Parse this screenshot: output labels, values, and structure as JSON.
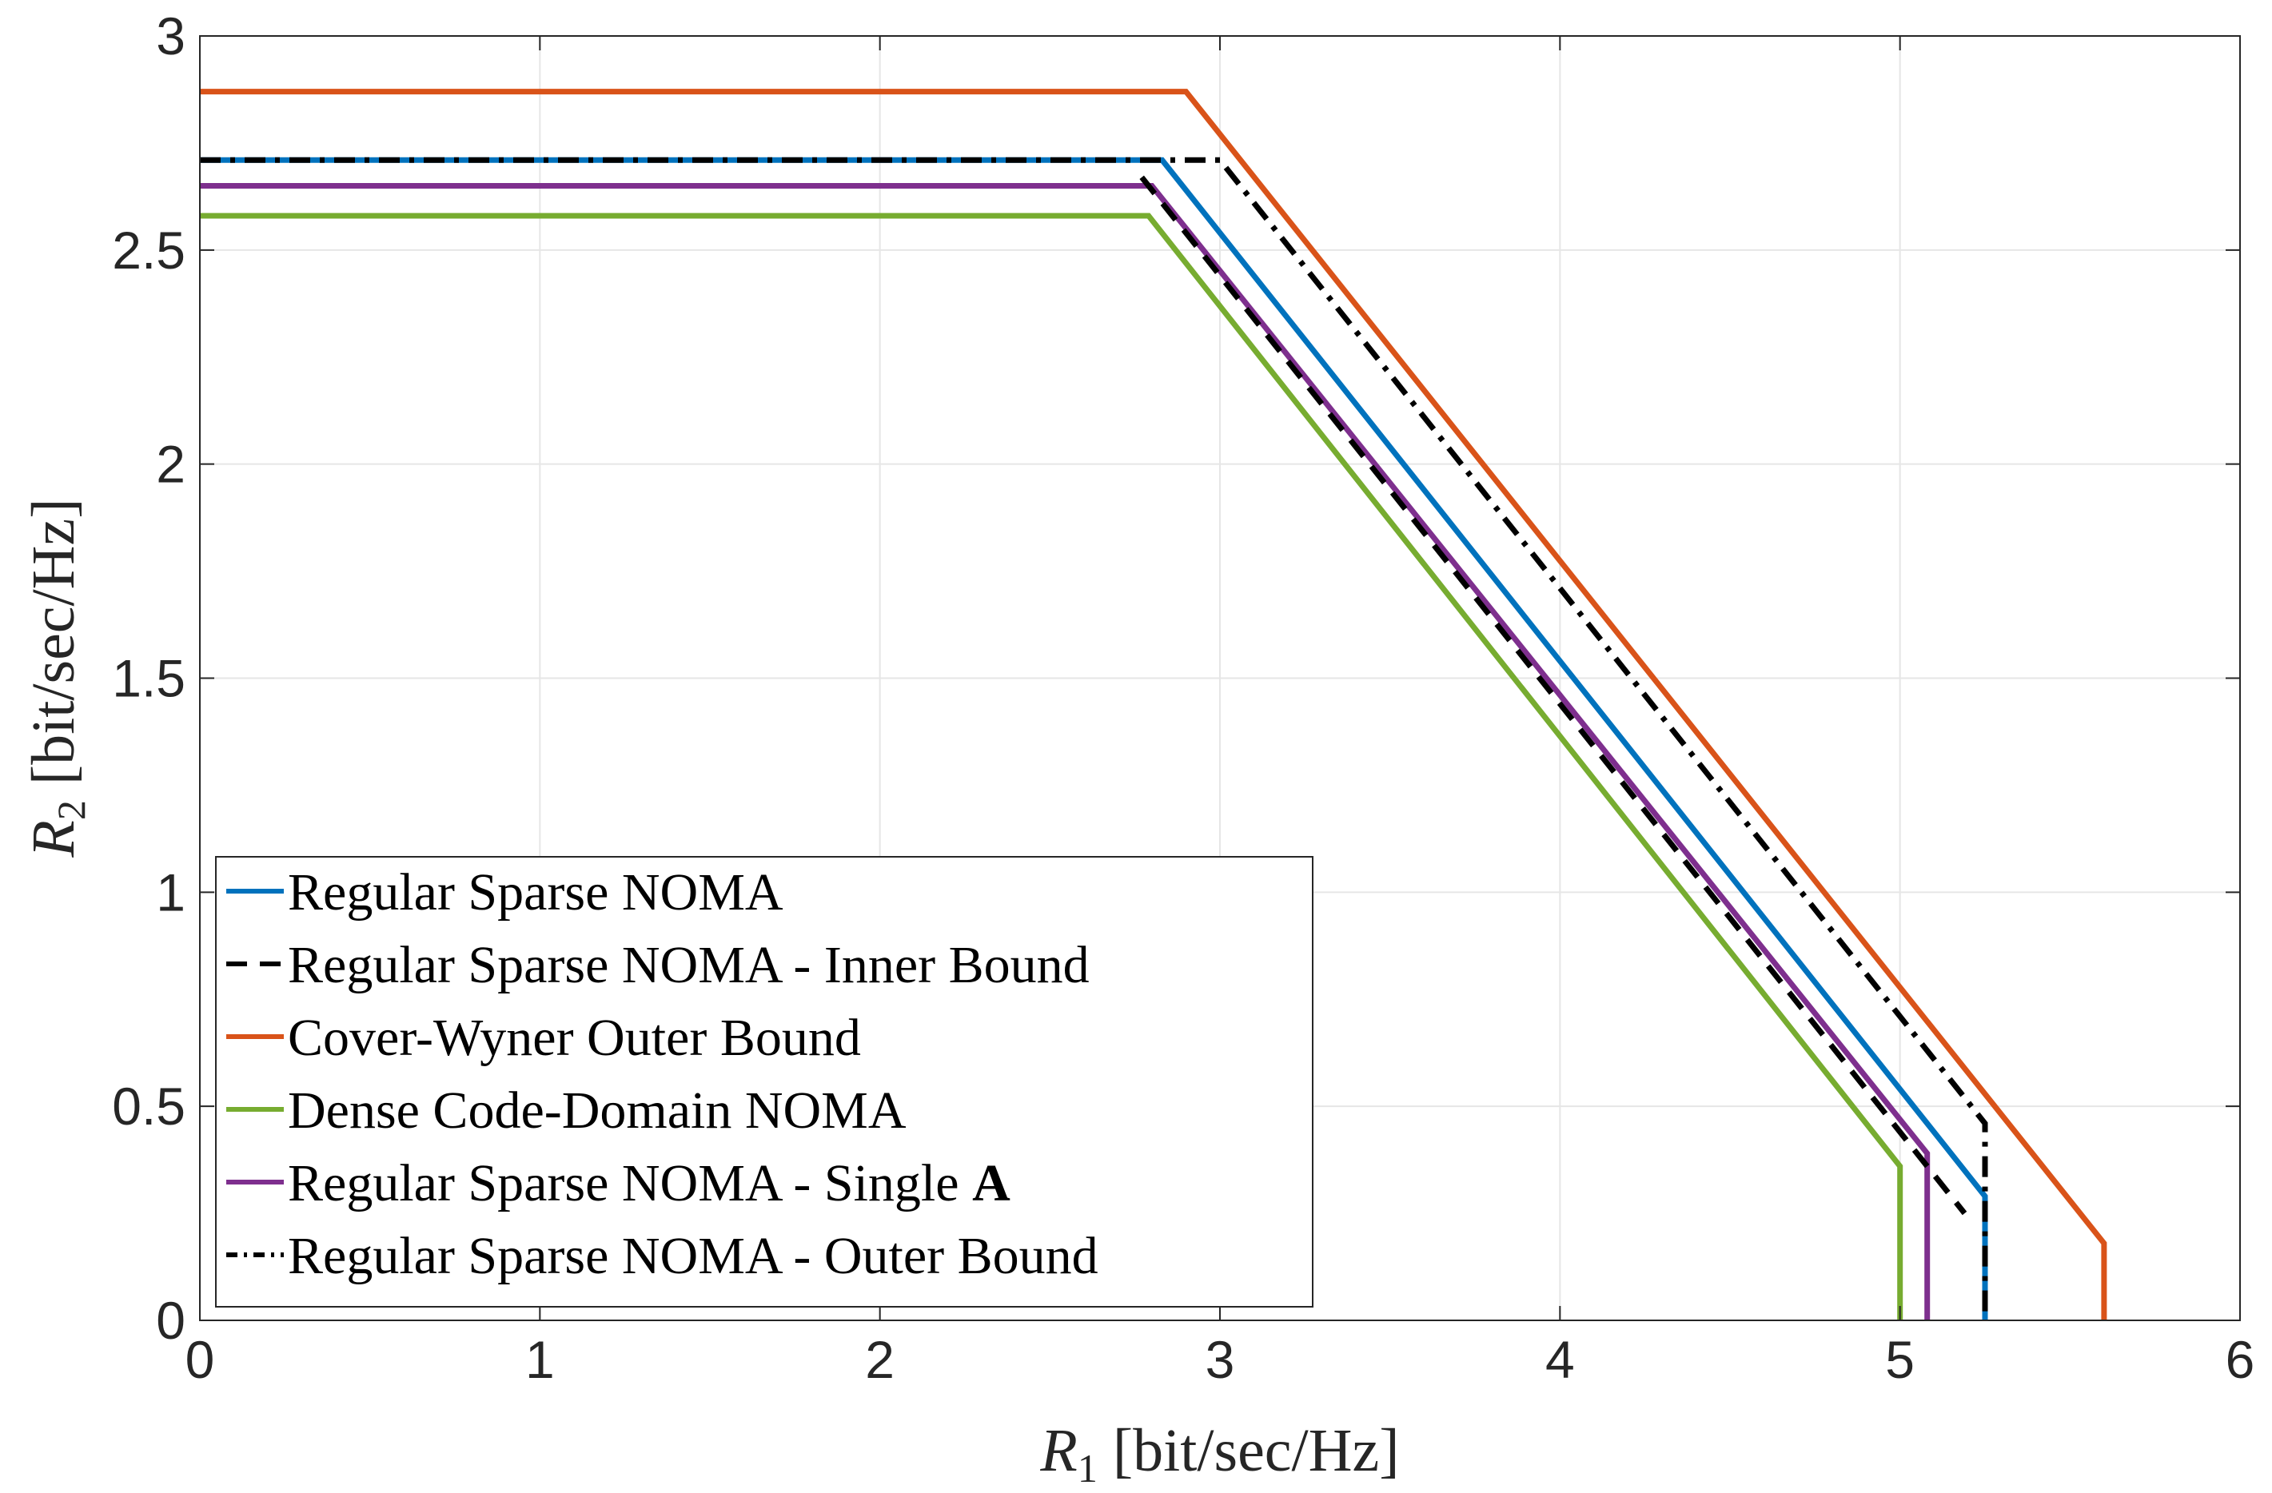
{
  "chart_data": {
    "type": "line",
    "xlabel": "R1 [bit/sec/Hz]",
    "ylabel": "R2 [bit/sec/Hz]",
    "xlabel_parts": {
      "var": "R",
      "sub": "1",
      "unit": " [bit/sec/Hz]"
    },
    "ylabel_parts": {
      "var": "R",
      "sub": "2",
      "unit": " [bit/sec/Hz]"
    },
    "xlim": [
      0,
      6
    ],
    "ylim": [
      0,
      3
    ],
    "xticks": [
      0,
      1,
      2,
      3,
      4,
      5,
      6
    ],
    "yticks": [
      0,
      0.5,
      1,
      1.5,
      2,
      2.5,
      3
    ],
    "xtick_labels": [
      "0",
      "1",
      "2",
      "3",
      "4",
      "5",
      "6"
    ],
    "ytick_labels": [
      "0",
      "0.5",
      "1",
      "1.5",
      "2",
      "2.5",
      "3"
    ],
    "grid": true,
    "legend_position": "bottom-left",
    "series": [
      {
        "name": "Regular Sparse NOMA",
        "color": "#0072BD",
        "dash": "solid",
        "x": [
          0,
          2.83,
          5.25,
          5.25
        ],
        "y": [
          2.71,
          2.71,
          0.29,
          0
        ]
      },
      {
        "name": "Regular Sparse NOMA - Inner Bound",
        "color": "#000000",
        "dash": "dashed",
        "x": [
          2.77,
          5.19
        ],
        "y": [
          2.67,
          0.25
        ]
      },
      {
        "name": "Cover-Wyner Outer Bound",
        "color": "#D95319",
        "dash": "solid",
        "x": [
          0,
          2.9,
          5.6,
          5.6
        ],
        "y": [
          2.87,
          2.87,
          0.18,
          0
        ]
      },
      {
        "name": "Dense Code-Domain NOMA",
        "color": "#77AC30",
        "dash": "solid",
        "x": [
          0,
          2.79,
          5.0,
          5.0
        ],
        "y": [
          2.58,
          2.58,
          0.36,
          0
        ]
      },
      {
        "name": "Regular Sparse NOMA - Single A",
        "label_plain": "Regular Sparse NOMA - Single ",
        "label_bold": "A",
        "color": "#7E2F8E",
        "dash": "solid",
        "x": [
          0,
          2.8,
          5.08,
          5.08
        ],
        "y": [
          2.65,
          2.65,
          0.39,
          0
        ]
      },
      {
        "name": "Regular Sparse NOMA - Outer Bound",
        "color": "#000000",
        "dash": "dashdot",
        "x": [
          0,
          3.0,
          5.25,
          5.25
        ],
        "y": [
          2.71,
          2.71,
          0.46,
          0
        ]
      }
    ]
  }
}
